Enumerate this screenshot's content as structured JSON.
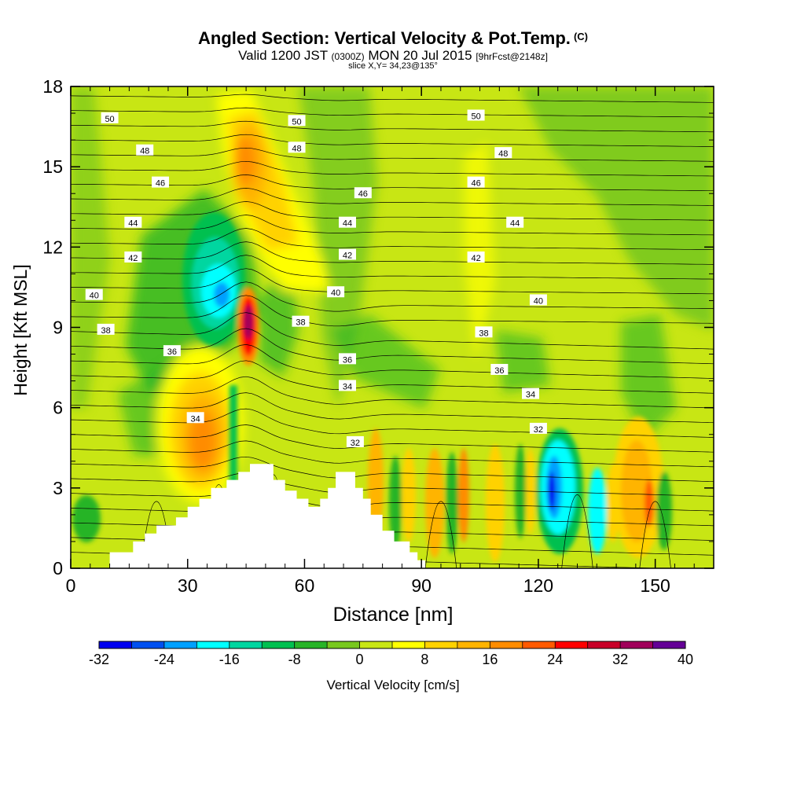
{
  "header": {
    "title": "Angled Section: Vertical Velocity & Pot.Temp.",
    "copyright": "(C)",
    "valid_prefix": "Valid 1200 JST",
    "valid_utc": "(0300Z)",
    "valid_date": "MON 20 Jul 2015",
    "forecast": "[9hrFcst@2148z]",
    "slice": "slice X,Y= 34,23@135°"
  },
  "chart_data": {
    "type": "heatmap",
    "xlabel": "Distance [nm]",
    "ylabel": "Height [Kft MSL]",
    "xlim": [
      0,
      165
    ],
    "ylim": [
      0,
      18
    ],
    "xticks": [
      0,
      30,
      60,
      90,
      120,
      150
    ],
    "yticks": [
      0,
      3,
      6,
      9,
      12,
      15,
      18
    ],
    "colorbar": {
      "title": "Vertical Velocity [cm/s]",
      "labels": [
        "-32",
        "-24",
        "-16",
        "-8",
        "0",
        "8",
        "16",
        "24",
        "32",
        "40"
      ],
      "levels": [
        -32,
        -28,
        -24,
        -20,
        -16,
        -12,
        -8,
        -4,
        0,
        4,
        8,
        12,
        16,
        20,
        24,
        28,
        32,
        36,
        40
      ],
      "colors": [
        "#0000f0",
        "#0050f0",
        "#00a0ff",
        "#00ffff",
        "#00d6a0",
        "#00c050",
        "#28b428",
        "#78c81e",
        "#c8e614",
        "#ffff00",
        "#ffd200",
        "#ffb400",
        "#ff8c00",
        "#ff5a00",
        "#ff0000",
        "#c80028",
        "#a0005a",
        "#640096"
      ]
    },
    "terrain": [
      [
        10,
        0
      ],
      [
        10,
        0.6
      ],
      [
        16,
        0.6
      ],
      [
        16,
        1
      ],
      [
        19,
        1
      ],
      [
        19,
        1.3
      ],
      [
        22,
        1.3
      ],
      [
        22,
        1.6
      ],
      [
        27,
        1.6
      ],
      [
        27,
        1.9
      ],
      [
        30,
        1.9
      ],
      [
        30,
        2.3
      ],
      [
        33,
        2.3
      ],
      [
        33,
        2.6
      ],
      [
        36,
        2.6
      ],
      [
        36,
        3
      ],
      [
        40,
        3
      ],
      [
        40,
        3.3
      ],
      [
        43,
        3.3
      ],
      [
        43,
        3.6
      ],
      [
        46,
        3.6
      ],
      [
        46,
        3.9
      ],
      [
        52,
        3.9
      ],
      [
        52,
        3.3
      ],
      [
        55,
        3.3
      ],
      [
        55,
        2.9
      ],
      [
        58,
        2.9
      ],
      [
        58,
        2.6
      ],
      [
        61,
        2.6
      ],
      [
        61,
        2.3
      ],
      [
        64,
        2.3
      ],
      [
        64,
        2.6
      ],
      [
        66,
        2.6
      ],
      [
        66,
        3
      ],
      [
        68,
        3
      ],
      [
        68,
        3.6
      ],
      [
        73,
        3.6
      ],
      [
        73,
        3.0
      ],
      [
        75,
        3.0
      ],
      [
        75,
        2.6
      ],
      [
        77,
        2.6
      ],
      [
        77,
        2.0
      ],
      [
        80,
        2.0
      ],
      [
        80,
        1.4
      ],
      [
        83,
        1.4
      ],
      [
        83,
        1.0
      ],
      [
        87,
        1.0
      ],
      [
        87,
        0.6
      ],
      [
        89,
        0.6
      ],
      [
        89,
        0.3
      ],
      [
        91,
        0.3
      ],
      [
        91,
        0
      ]
    ],
    "cells": [
      {
        "x": 45,
        "y": 9.0,
        "value": 36
      },
      {
        "x": 46,
        "y": 16,
        "value": 12
      },
      {
        "x": 34,
        "y": 4.5,
        "value": 20
      },
      {
        "x": 40,
        "y": 10.3,
        "value": -16
      },
      {
        "x": 124,
        "y": 2.8,
        "value": -32
      },
      {
        "x": 146,
        "y": 2.5,
        "value": 20
      },
      {
        "x": 80,
        "y": 3.2,
        "value": 16
      },
      {
        "x": 98,
        "y": 3.0,
        "value": 16
      }
    ],
    "isentropes": [
      {
        "label": "50",
        "labels": [
          [
            10,
            16.8
          ],
          [
            58,
            16.7
          ],
          [
            104,
            16.9
          ]
        ]
      },
      {
        "label": "48",
        "labels": [
          [
            19,
            15.6
          ],
          [
            58,
            15.7
          ],
          [
            111,
            15.5
          ]
        ]
      },
      {
        "label": "46",
        "labels": [
          [
            23,
            14.4
          ],
          [
            75,
            14.0
          ],
          [
            104,
            14.4
          ]
        ]
      },
      {
        "label": "44",
        "labels": [
          [
            16,
            12.9
          ],
          [
            71,
            12.9
          ],
          [
            114,
            12.9
          ]
        ]
      },
      {
        "label": "42",
        "labels": [
          [
            16,
            11.6
          ],
          [
            71,
            11.7
          ],
          [
            104,
            11.6
          ]
        ]
      },
      {
        "label": "40",
        "labels": [
          [
            6,
            10.2
          ],
          [
            68,
            10.3
          ],
          [
            120,
            10.0
          ]
        ]
      },
      {
        "label": "38",
        "labels": [
          [
            9,
            8.9
          ],
          [
            59,
            9.2
          ],
          [
            106,
            8.8
          ]
        ]
      },
      {
        "label": "36",
        "labels": [
          [
            26,
            8.1
          ],
          [
            71,
            7.8
          ],
          [
            110,
            7.4
          ]
        ]
      },
      {
        "label": "34",
        "labels": [
          [
            32,
            5.6
          ],
          [
            71,
            6.8
          ],
          [
            118,
            6.5
          ]
        ]
      },
      {
        "label": "32",
        "labels": [
          [
            73,
            4.7
          ],
          [
            120,
            5.2
          ]
        ]
      }
    ]
  }
}
